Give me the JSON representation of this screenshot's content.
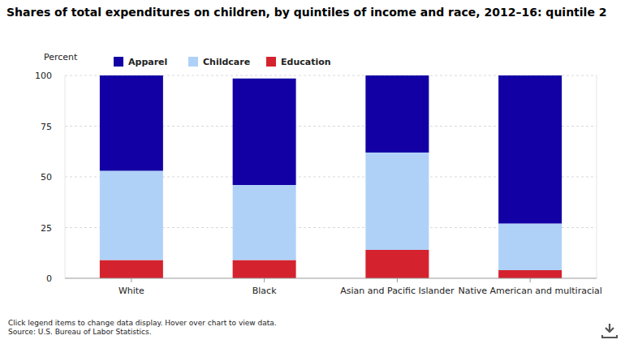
{
  "chart_data": {
    "type": "bar",
    "stacked": true,
    "title": "Shares of total expenditures on children, by quintiles of income and race, 2012–16: quintile 2",
    "y_label": "Percent",
    "categories": [
      "White",
      "Black",
      "Asian and Pacific Islander",
      "Native American and multiracial"
    ],
    "series": [
      {
        "name": "Apparel",
        "color": "#1200a4",
        "values": [
          47,
          52.5,
          38,
          73
        ]
      },
      {
        "name": "Childcare",
        "color": "#afd1f8",
        "values": [
          44,
          37,
          48,
          23
        ]
      },
      {
        "name": "Education",
        "color": "#d4232e",
        "values": [
          9,
          9,
          14,
          4
        ]
      }
    ],
    "ylim": [
      0,
      100
    ],
    "yticks": [
      0,
      25,
      50,
      75,
      100
    ],
    "grid": true,
    "legend": "top",
    "annotations": [
      "Click legend items to change data display. Hover over chart to view data.",
      "Source: U.S. Bureau of Labor Statistics."
    ]
  }
}
